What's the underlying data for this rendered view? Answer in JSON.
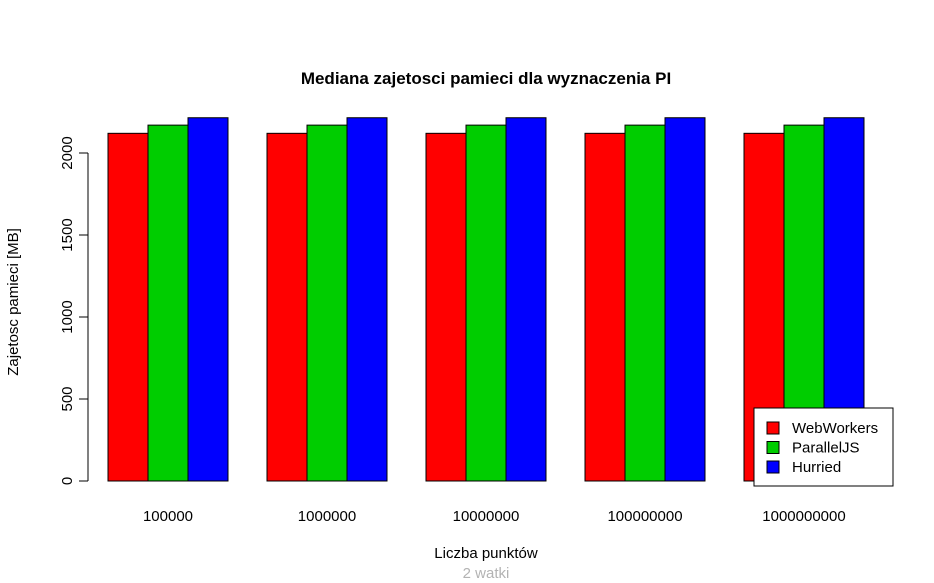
{
  "chart_data": {
    "type": "bar",
    "title": "Mediana zajetosci pamieci dla wyznaczenia PI",
    "subtitle": "2 watki",
    "xlabel": "Liczba punktów",
    "ylabel": "Zajetosc pamieci [MB]",
    "categories": [
      "100000",
      "1000000",
      "10000000",
      "100000000",
      "1000000000"
    ],
    "ylim": [
      0,
      2200
    ],
    "yticks": [
      0,
      500,
      1000,
      1500,
      2000
    ],
    "grid": false,
    "legend_position": "bottom-right",
    "series": [
      {
        "name": "WebWorkers",
        "color": "#ff0000",
        "values": [
          2120,
          2120,
          2120,
          2120,
          2120
        ]
      },
      {
        "name": "ParallelJS",
        "color": "#00cd00",
        "values": [
          2170,
          2170,
          2170,
          2170,
          2170
        ]
      },
      {
        "name": "Hurried",
        "color": "#0000ff",
        "values": [
          2215,
          2215,
          2215,
          2215,
          2215
        ]
      }
    ]
  }
}
